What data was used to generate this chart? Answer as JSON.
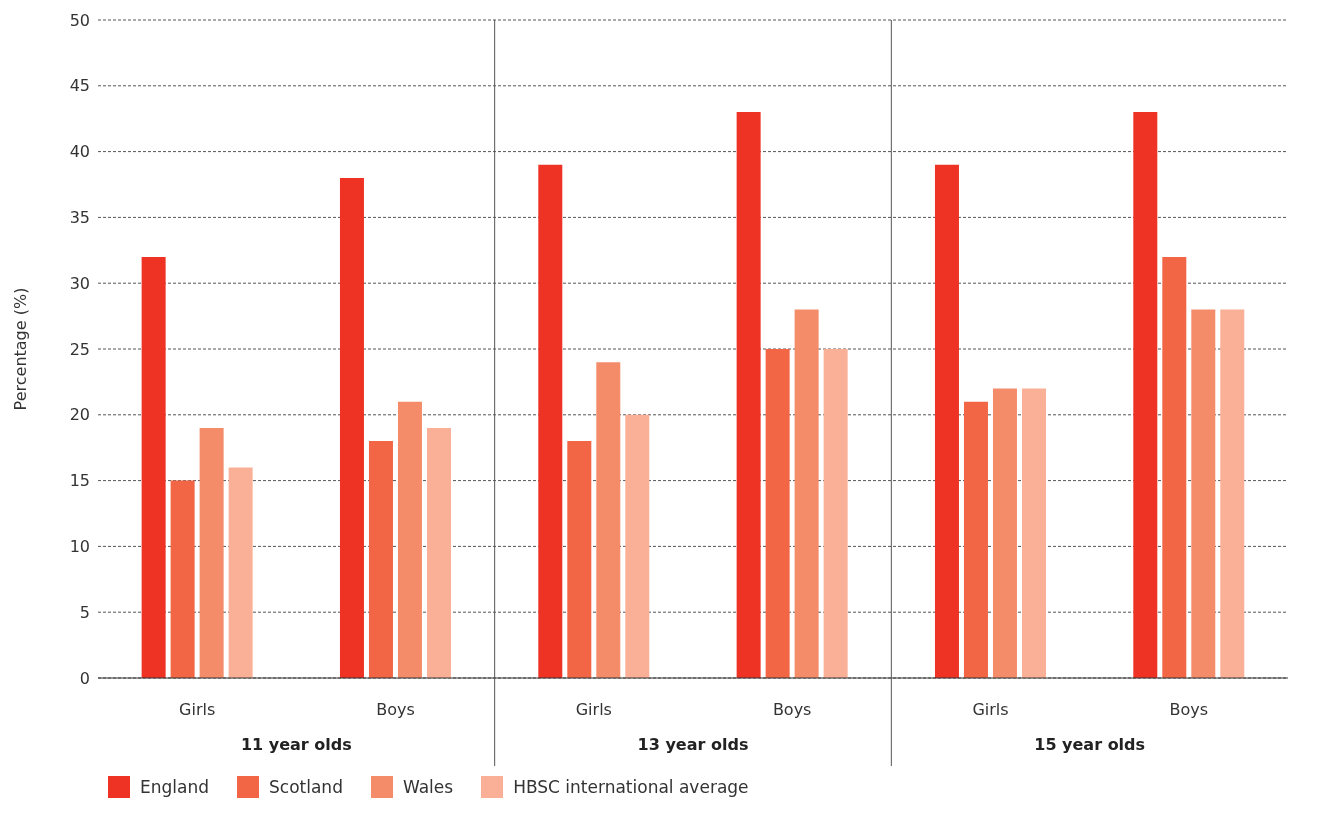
{
  "chart_data": {
    "type": "bar",
    "ylabel": "Percentage (%)",
    "categories": [
      "Girls",
      "Boys",
      "Girls",
      "Boys",
      "Girls",
      "Boys"
    ],
    "annotations": [
      "11 year olds",
      "13 year olds",
      "15 year olds"
    ],
    "series": [
      {
        "name": "England",
        "color": "#ee3224",
        "values": [
          32,
          38,
          39,
          43,
          39,
          43
        ]
      },
      {
        "name": "Scotland",
        "color": "#f26645",
        "values": [
          15,
          18,
          18,
          25,
          21,
          32
        ]
      },
      {
        "name": "Wales",
        "color": "#f48c6a",
        "values": [
          19,
          21,
          24,
          28,
          22,
          28
        ]
      },
      {
        "name": "HBSC international average",
        "color": "#f9b096",
        "values": [
          16,
          19,
          20,
          25,
          22,
          28
        ]
      }
    ],
    "ylim": [
      0,
      50
    ],
    "yticks": [
      0,
      5,
      10,
      15,
      20,
      25,
      30,
      35,
      40,
      45,
      50
    ],
    "grid": "y",
    "legend": "bottom left"
  }
}
